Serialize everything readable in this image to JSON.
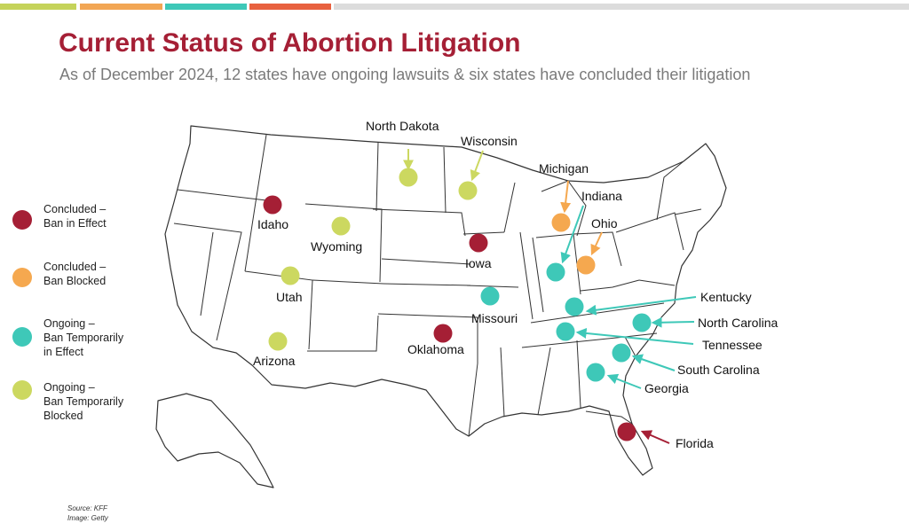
{
  "header": {
    "title": "Current Status of Abortion Litigation",
    "subtitle": "As of December 2024, 12 states have ongoing lawsuits & six states have concluded their litigation"
  },
  "colors": {
    "bar": [
      "#c5d35a",
      "#f2a654",
      "#3ec8b8",
      "#e8613f",
      "#dcdcdc"
    ],
    "concluded_ban_in_effect": "#a51f35",
    "concluded_ban_blocked": "#f5a84f",
    "ongoing_ban_in_effect": "#3ec8b8",
    "ongoing_ban_blocked": "#ccd860",
    "title": "#a51f35"
  },
  "legend": [
    {
      "key": "concluded_ban_in_effect",
      "label": "Concluded –\nBan in Effect"
    },
    {
      "key": "concluded_ban_blocked",
      "label": "Concluded –\nBan Blocked"
    },
    {
      "key": "ongoing_ban_in_effect",
      "label": "Ongoing –\nBan Temporarily\nin Effect"
    },
    {
      "key": "ongoing_ban_blocked",
      "label": "Ongoing –\nBan Temporarily\nBlocked"
    }
  ],
  "states": [
    {
      "name": "North Dakota",
      "status": "ongoing_ban_blocked"
    },
    {
      "name": "Wisconsin",
      "status": "ongoing_ban_blocked"
    },
    {
      "name": "Michigan",
      "status": "concluded_ban_blocked"
    },
    {
      "name": "Indiana",
      "status": "ongoing_ban_in_effect"
    },
    {
      "name": "Ohio",
      "status": "concluded_ban_blocked"
    },
    {
      "name": "Idaho",
      "status": "concluded_ban_in_effect"
    },
    {
      "name": "Wyoming",
      "status": "ongoing_ban_blocked"
    },
    {
      "name": "Iowa",
      "status": "concluded_ban_in_effect"
    },
    {
      "name": "Utah",
      "status": "ongoing_ban_blocked"
    },
    {
      "name": "Missouri",
      "status": "ongoing_ban_in_effect"
    },
    {
      "name": "Kentucky",
      "status": "ongoing_ban_in_effect"
    },
    {
      "name": "North Carolina",
      "status": "ongoing_ban_in_effect"
    },
    {
      "name": "Tennessee",
      "status": "ongoing_ban_in_effect"
    },
    {
      "name": "Oklahoma",
      "status": "concluded_ban_in_effect"
    },
    {
      "name": "Arizona",
      "status": "ongoing_ban_blocked"
    },
    {
      "name": "South Carolina",
      "status": "ongoing_ban_in_effect"
    },
    {
      "name": "Georgia",
      "status": "ongoing_ban_in_effect"
    },
    {
      "name": "Florida",
      "status": "concluded_ban_in_effect"
    }
  ],
  "source": {
    "line1": "Source: KFF",
    "line2": "Image: Getty"
  }
}
